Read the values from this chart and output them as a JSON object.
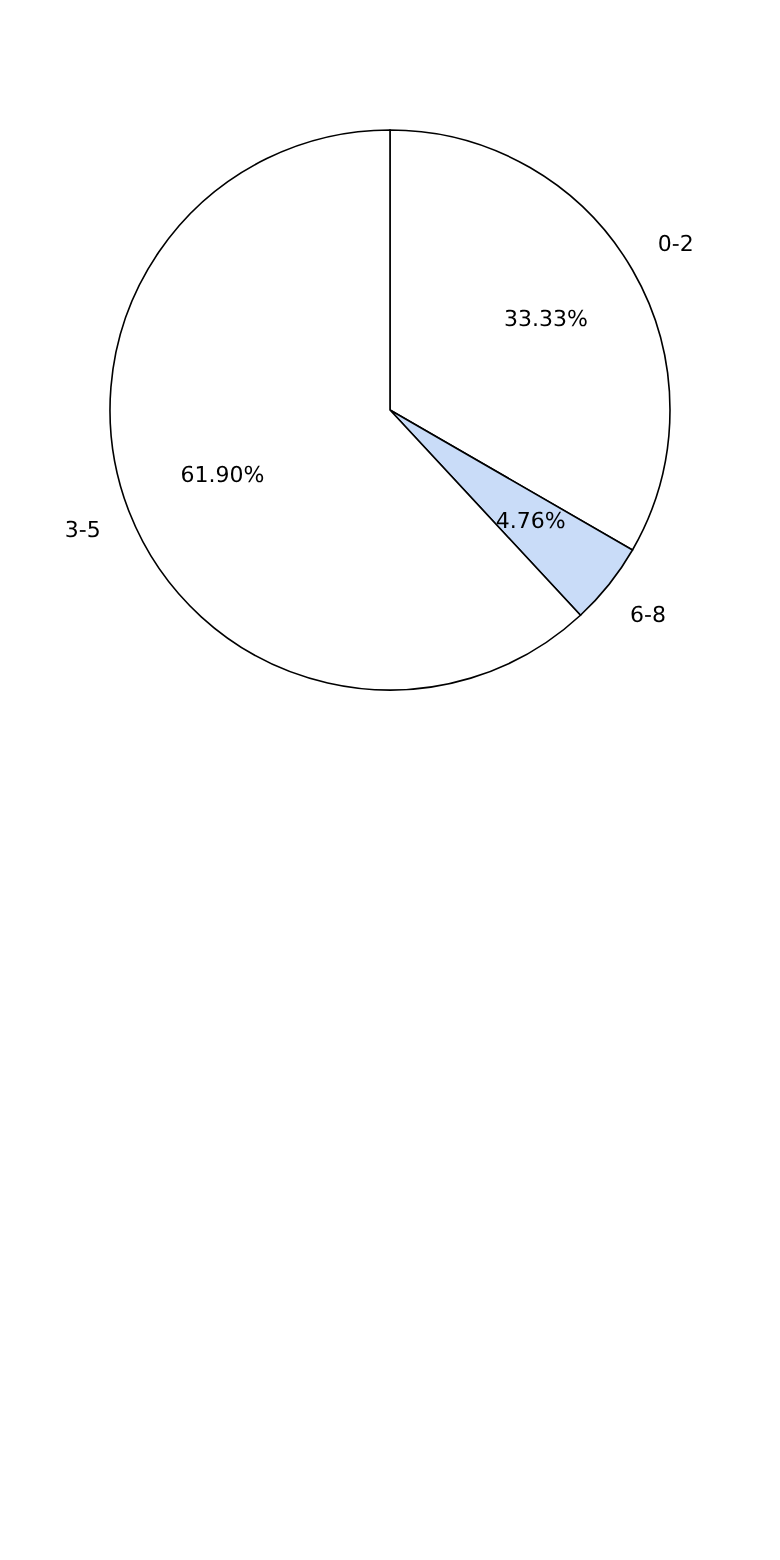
{
  "chart_data": {
    "type": "pie",
    "categories": [
      "0-2",
      "6-8",
      "3-5"
    ],
    "values": [
      33.33,
      4.76,
      61.9
    ],
    "colors": [
      "#ffffff",
      "#c9dcf8",
      "#ffffff"
    ],
    "value_labels": [
      "33.33%",
      "4.76%",
      "61.90%"
    ],
    "legend": false
  }
}
